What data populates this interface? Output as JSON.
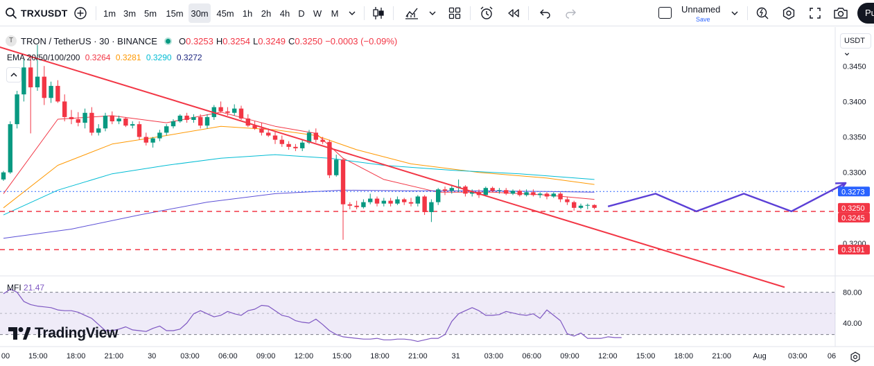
{
  "toolbar": {
    "symbol": "TRXUSDT",
    "add_icon": "plus-circle-icon",
    "intervals": [
      "1m",
      "3m",
      "5m",
      "15m",
      "30m",
      "45m",
      "1h",
      "2h",
      "4h",
      "D",
      "W",
      "M"
    ],
    "active_interval": "30m",
    "layout_name": "Unnamed",
    "save_label": "Save",
    "publish_label": "Pu"
  },
  "legend": {
    "symbol_title": "TRON / TetherUS · 30 · BINANCE",
    "coin_glyph": "T",
    "ohlc": [
      {
        "key": "O",
        "value": "0.3253"
      },
      {
        "key": "H",
        "value": "0.3254"
      },
      {
        "key": "L",
        "value": "0.3249"
      },
      {
        "key": "C",
        "value": "0.3250"
      }
    ],
    "change": "−0.0003 (−0.09%)",
    "ema_label": "EMA 20/50/100/200",
    "ema_values": [
      {
        "value": "0.3264",
        "color": "#f23645"
      },
      {
        "value": "0.3281",
        "color": "#ff9800"
      },
      {
        "value": "0.3290",
        "color": "#00bcd4"
      },
      {
        "value": "0.3272",
        "color": "#1a237e"
      }
    ],
    "mfi_label": "MFI",
    "mfi_value": "21.47",
    "currency_selector": "USDT"
  },
  "branding": {
    "logo_text": "TradingView"
  },
  "chart_data": {
    "type": "candlestick",
    "interval": "30m",
    "price_axis": {
      "ticks": [
        {
          "label": "0.3450",
          "value": 0.345
        },
        {
          "label": "0.3400",
          "value": 0.34
        },
        {
          "label": "0.3350",
          "value": 0.335
        },
        {
          "label": "0.3300",
          "value": 0.33
        },
        {
          "label": "0.3200",
          "value": 0.32
        }
      ],
      "range": [
        0.3155,
        0.3505
      ]
    },
    "price_badges": [
      {
        "label": "0.3273",
        "value": 0.3273,
        "color": "#2962ff"
      },
      {
        "label": "0.3250",
        "value": 0.325,
        "color": "#f23645"
      },
      {
        "label": "0.3245",
        "value": 0.3245,
        "color": "#f23645"
      },
      {
        "label": "0.3191",
        "value": 0.3191,
        "color": "#f23645"
      }
    ],
    "horizontal_lines": [
      {
        "price": 0.3245,
        "style": "dashed",
        "color": "#f23645"
      },
      {
        "price": 0.3191,
        "style": "dashed",
        "color": "#f23645"
      },
      {
        "price": 0.3273,
        "style": "dotted",
        "color": "#2962ff"
      }
    ],
    "time_axis": [
      "00",
      "15:00",
      "18:00",
      "21:00",
      "30",
      "03:00",
      "06:00",
      "09:00",
      "12:00",
      "15:00",
      "18:00",
      "21:00",
      "31",
      "03:00",
      "06:00",
      "09:00",
      "12:00",
      "15:00",
      "18:00",
      "21:00",
      "Aug",
      "03:00",
      "06"
    ],
    "candles": [
      [
        0.329,
        0.3302,
        0.3288,
        0.33
      ],
      [
        0.33,
        0.3372,
        0.3298,
        0.3368
      ],
      [
        0.3368,
        0.3415,
        0.3362,
        0.341
      ],
      [
        0.341,
        0.346,
        0.34,
        0.3448
      ],
      [
        0.3448,
        0.3462,
        0.3355,
        0.342
      ],
      [
        0.342,
        0.348,
        0.3415,
        0.3435
      ],
      [
        0.3435,
        0.345,
        0.3395,
        0.3405
      ],
      [
        0.3405,
        0.3428,
        0.3398,
        0.3422
      ],
      [
        0.3422,
        0.343,
        0.3398,
        0.34
      ],
      [
        0.34,
        0.341,
        0.3372,
        0.3378
      ],
      [
        0.3378,
        0.3388,
        0.3368,
        0.3375
      ],
      [
        0.3375,
        0.3385,
        0.3365,
        0.337
      ],
      [
        0.337,
        0.339,
        0.3362,
        0.3384
      ],
      [
        0.3384,
        0.3392,
        0.3352,
        0.3356
      ],
      [
        0.3356,
        0.3368,
        0.3352,
        0.3362
      ],
      [
        0.3362,
        0.3384,
        0.3358,
        0.338
      ],
      [
        0.338,
        0.3386,
        0.3368,
        0.3372
      ],
      [
        0.3372,
        0.338,
        0.3368,
        0.3376
      ],
      [
        0.3376,
        0.3378,
        0.3364,
        0.3366
      ],
      [
        0.3366,
        0.3372,
        0.3362,
        0.3368
      ],
      [
        0.3368,
        0.3372,
        0.3346,
        0.335
      ],
      [
        0.335,
        0.3356,
        0.3338,
        0.3342
      ],
      [
        0.3342,
        0.335,
        0.3335,
        0.3348
      ],
      [
        0.3348,
        0.336,
        0.3344,
        0.3356
      ],
      [
        0.3356,
        0.3368,
        0.3352,
        0.3365
      ],
      [
        0.3365,
        0.3375,
        0.3362,
        0.3372
      ],
      [
        0.3372,
        0.3382,
        0.337,
        0.338
      ],
      [
        0.338,
        0.3384,
        0.337,
        0.3374
      ],
      [
        0.3374,
        0.3382,
        0.337,
        0.3378
      ],
      [
        0.3378,
        0.3382,
        0.3362,
        0.3366
      ],
      [
        0.3366,
        0.3382,
        0.3362,
        0.3378
      ],
      [
        0.3378,
        0.3395,
        0.3374,
        0.3392
      ],
      [
        0.3392,
        0.34,
        0.3384,
        0.3386
      ],
      [
        0.3386,
        0.3392,
        0.338,
        0.3384
      ],
      [
        0.3384,
        0.3396,
        0.338,
        0.339
      ],
      [
        0.339,
        0.3394,
        0.3374,
        0.3376
      ],
      [
        0.3376,
        0.3382,
        0.3364,
        0.3366
      ],
      [
        0.3366,
        0.3372,
        0.336,
        0.3362
      ],
      [
        0.3362,
        0.337,
        0.3352,
        0.3356
      ],
      [
        0.3356,
        0.3362,
        0.335,
        0.3352
      ],
      [
        0.3352,
        0.3358,
        0.334,
        0.3346
      ],
      [
        0.3346,
        0.3352,
        0.3336,
        0.334
      ],
      [
        0.334,
        0.3344,
        0.3332,
        0.3336
      ],
      [
        0.3336,
        0.334,
        0.333,
        0.3334
      ],
      [
        0.3334,
        0.3346,
        0.333,
        0.3342
      ],
      [
        0.3342,
        0.336,
        0.334,
        0.3356
      ],
      [
        0.3356,
        0.3362,
        0.3342,
        0.3346
      ],
      [
        0.3346,
        0.335,
        0.334,
        0.3343
      ],
      [
        0.3343,
        0.3346,
        0.3292,
        0.3296
      ],
      [
        0.3296,
        0.3325,
        0.3294,
        0.3318
      ],
      [
        0.3318,
        0.332,
        0.3205,
        0.3255
      ],
      [
        0.3255,
        0.3258,
        0.3248,
        0.3253
      ],
      [
        0.3253,
        0.326,
        0.3248,
        0.3251
      ],
      [
        0.3251,
        0.3262,
        0.3249,
        0.3258
      ],
      [
        0.3258,
        0.327,
        0.3255,
        0.3263
      ],
      [
        0.3263,
        0.3266,
        0.3252,
        0.3256
      ],
      [
        0.3256,
        0.3264,
        0.3252,
        0.326
      ],
      [
        0.326,
        0.3264,
        0.3252,
        0.3256
      ],
      [
        0.3256,
        0.3266,
        0.3254,
        0.3262
      ],
      [
        0.3262,
        0.3264,
        0.3254,
        0.3258
      ],
      [
        0.3258,
        0.3264,
        0.3252,
        0.3256
      ],
      [
        0.3256,
        0.3268,
        0.3252,
        0.3266
      ],
      [
        0.3266,
        0.3268,
        0.324,
        0.3244
      ],
      [
        0.3244,
        0.3262,
        0.323,
        0.3258
      ],
      [
        0.3258,
        0.3278,
        0.3254,
        0.3276
      ],
      [
        0.3276,
        0.328,
        0.3268,
        0.3274
      ],
      [
        0.3274,
        0.3282,
        0.327,
        0.3278
      ],
      [
        0.3278,
        0.329,
        0.3272,
        0.328
      ],
      [
        0.328,
        0.3282,
        0.3266,
        0.327
      ],
      [
        0.327,
        0.3276,
        0.3266,
        0.3272
      ],
      [
        0.3272,
        0.3276,
        0.3264,
        0.3268
      ],
      [
        0.3268,
        0.328,
        0.3266,
        0.3278
      ],
      [
        0.3278,
        0.328,
        0.3272,
        0.3274
      ],
      [
        0.3274,
        0.3278,
        0.327,
        0.3275
      ],
      [
        0.3275,
        0.3278,
        0.3268,
        0.327
      ],
      [
        0.327,
        0.3276,
        0.3268,
        0.3274
      ],
      [
        0.3274,
        0.3276,
        0.3266,
        0.3268
      ],
      [
        0.3268,
        0.3276,
        0.3266,
        0.3272
      ],
      [
        0.3272,
        0.3276,
        0.3266,
        0.3268
      ],
      [
        0.3268,
        0.3272,
        0.3264,
        0.327
      ],
      [
        0.327,
        0.3272,
        0.3262,
        0.3266
      ],
      [
        0.3266,
        0.3272,
        0.3264,
        0.327
      ],
      [
        0.327,
        0.3272,
        0.3258,
        0.3262
      ],
      [
        0.3262,
        0.3266,
        0.3254,
        0.3258
      ],
      [
        0.3258,
        0.326,
        0.3246,
        0.325
      ],
      [
        0.325,
        0.3256,
        0.3248,
        0.3253
      ],
      [
        0.3253,
        0.3256,
        0.3248,
        0.3254
      ],
      [
        0.3254,
        0.3255,
        0.3248,
        0.325
      ]
    ],
    "ema": [
      {
        "name": "EMA 20",
        "color": "#f23645",
        "points": [
          [
            0,
            0.327
          ],
          [
            8,
            0.3375
          ],
          [
            16,
            0.338
          ],
          [
            24,
            0.337
          ],
          [
            32,
            0.3385
          ],
          [
            40,
            0.3365
          ],
          [
            46,
            0.3355
          ],
          [
            50,
            0.332
          ],
          [
            56,
            0.329
          ],
          [
            64,
            0.3272
          ],
          [
            72,
            0.3272
          ],
          [
            80,
            0.3268
          ],
          [
            87,
            0.3262
          ]
        ]
      },
      {
        "name": "EMA 50",
        "color": "#ff9800",
        "points": [
          [
            0,
            0.325
          ],
          [
            8,
            0.331
          ],
          [
            16,
            0.334
          ],
          [
            24,
            0.3352
          ],
          [
            32,
            0.3365
          ],
          [
            40,
            0.336
          ],
          [
            46,
            0.3352
          ],
          [
            52,
            0.3332
          ],
          [
            60,
            0.3312
          ],
          [
            70,
            0.33
          ],
          [
            80,
            0.3292
          ],
          [
            87,
            0.3283
          ]
        ]
      },
      {
        "name": "EMA 100",
        "color": "#00bcd4",
        "points": [
          [
            0,
            0.324
          ],
          [
            8,
            0.3275
          ],
          [
            16,
            0.3298
          ],
          [
            24,
            0.331
          ],
          [
            32,
            0.332
          ],
          [
            40,
            0.3325
          ],
          [
            48,
            0.332
          ],
          [
            56,
            0.331
          ],
          [
            66,
            0.3303
          ],
          [
            76,
            0.3298
          ],
          [
            87,
            0.329
          ]
        ]
      },
      {
        "name": "EMA 200",
        "color": "#5b4fd6",
        "points": [
          [
            0,
            0.3207
          ],
          [
            10,
            0.322
          ],
          [
            20,
            0.324
          ],
          [
            30,
            0.3258
          ],
          [
            40,
            0.327
          ],
          [
            50,
            0.3275
          ],
          [
            60,
            0.3274
          ],
          [
            70,
            0.3274
          ],
          [
            80,
            0.3273
          ],
          [
            87,
            0.3272
          ]
        ]
      }
    ],
    "trendline": {
      "color": "#f23645",
      "from": [
        -1,
        0.3478
      ],
      "to": [
        115,
        0.3138
      ]
    },
    "projection": {
      "color": "#5b3fd6",
      "points": [
        [
          89,
          0.3252
        ],
        [
          96,
          0.327
        ],
        [
          102,
          0.3245
        ],
        [
          109,
          0.327
        ],
        [
          116,
          0.3245
        ],
        [
          124,
          0.3285
        ]
      ]
    },
    "mfi": {
      "axis": [
        {
          "label": "80.00",
          "value": 80
        },
        {
          "label": "40.00",
          "value": 40
        }
      ],
      "range": [
        12,
        95
      ],
      "band": [
        25,
        80
      ],
      "values": [
        78,
        84,
        80,
        68,
        64,
        62,
        61,
        60,
        57,
        56,
        56,
        54,
        50,
        46,
        38,
        30,
        30,
        32,
        35,
        31,
        30,
        29,
        33,
        36,
        30,
        30,
        32,
        40,
        52,
        56,
        52,
        48,
        50,
        55,
        52,
        50,
        56,
        58,
        63,
        62,
        56,
        50,
        48,
        43,
        41,
        40,
        45,
        38,
        30,
        25,
        22,
        21,
        20,
        19,
        19,
        20,
        18,
        18,
        19,
        19,
        18,
        16,
        18,
        20,
        20,
        25,
        42,
        52,
        56,
        60,
        56,
        50,
        50,
        51,
        55,
        53,
        51,
        50,
        52,
        46,
        57,
        50,
        43,
        26,
        23,
        27,
        20,
        20,
        20,
        22,
        21,
        21
      ]
    }
  }
}
